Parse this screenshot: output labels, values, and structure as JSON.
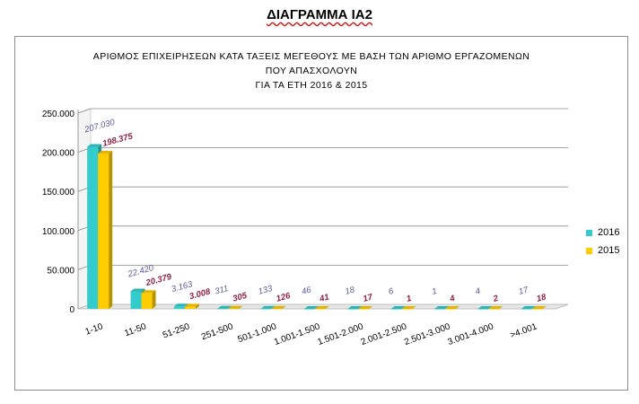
{
  "page": {
    "title": "ΔΙΑΓΡΑΜΜΑ ΙΑ2"
  },
  "chart": {
    "title_line1": "ΑΡΙΘΜΟΣ ΕΠΙΧΕΙΡΗΣΕΩΝ ΚΑΤΑ ΤΑΞΕΙΣ ΜΕΓΕΘΟΥΣ ΜΕ ΒΑΣΗ ΤΩΝ ΑΡΙΘΜΟ ΕΡΓΑΖΟΜΕΝΩΝ ΠΟΥ ΑΠΑΣΧΟΛΟΥΝ",
    "title_line2": "ΓΙΑ ΤΑ ΕΤΗ 2016 & 2015"
  },
  "chart_data": {
    "type": "bar",
    "title": "ΑΡΙΘΜΟΣ ΕΠΙΧΕΙΡΗΣΕΩΝ ΚΑΤΑ ΤΑΞΕΙΣ ΜΕΓΕΘΟΥΣ ΜΕ ΒΑΣΗ ΤΩΝ ΑΡΙΘΜΟ ΕΡΓΑΖΟΜΕΝΩΝ ΠΟΥ ΑΠΑΣΧΟΛΟΥΝ ΓΙΑ ΤΑ ΕΤΗ 2016 & 2015",
    "categories": [
      "1-10",
      "11-50",
      "51-250",
      "251-500",
      "501-1.000",
      "1.001-1.500",
      "1.501-2.000",
      "2.001-2.500",
      "2.501-3.000",
      "3.001-4.000",
      ">4.001"
    ],
    "series": [
      {
        "name": "2016",
        "color": "#33CCCC",
        "label_color": "#5a5a9e",
        "values": [
          207030,
          22420,
          3163,
          311,
          133,
          46,
          18,
          6,
          1,
          4,
          17
        ],
        "labels": [
          "207.030",
          "22.420",
          "3.163",
          "311",
          "133",
          "46",
          "18",
          "6",
          "1",
          "4",
          "17"
        ]
      },
      {
        "name": "2015",
        "color": "#FFCC00",
        "label_color": "#8e1f4a",
        "values": [
          198375,
          20379,
          3008,
          305,
          126,
          41,
          17,
          1,
          4,
          2,
          18
        ],
        "labels": [
          "198.375",
          "20.379",
          "3.008",
          "305",
          "126",
          "41",
          "17",
          "1",
          "4",
          "2",
          "18"
        ]
      }
    ],
    "yticks": [
      "0",
      "50.000",
      "100.000",
      "150.000",
      "200.000",
      "250.000"
    ],
    "ylim": [
      0,
      250000
    ],
    "grid": true,
    "legend": "right"
  }
}
